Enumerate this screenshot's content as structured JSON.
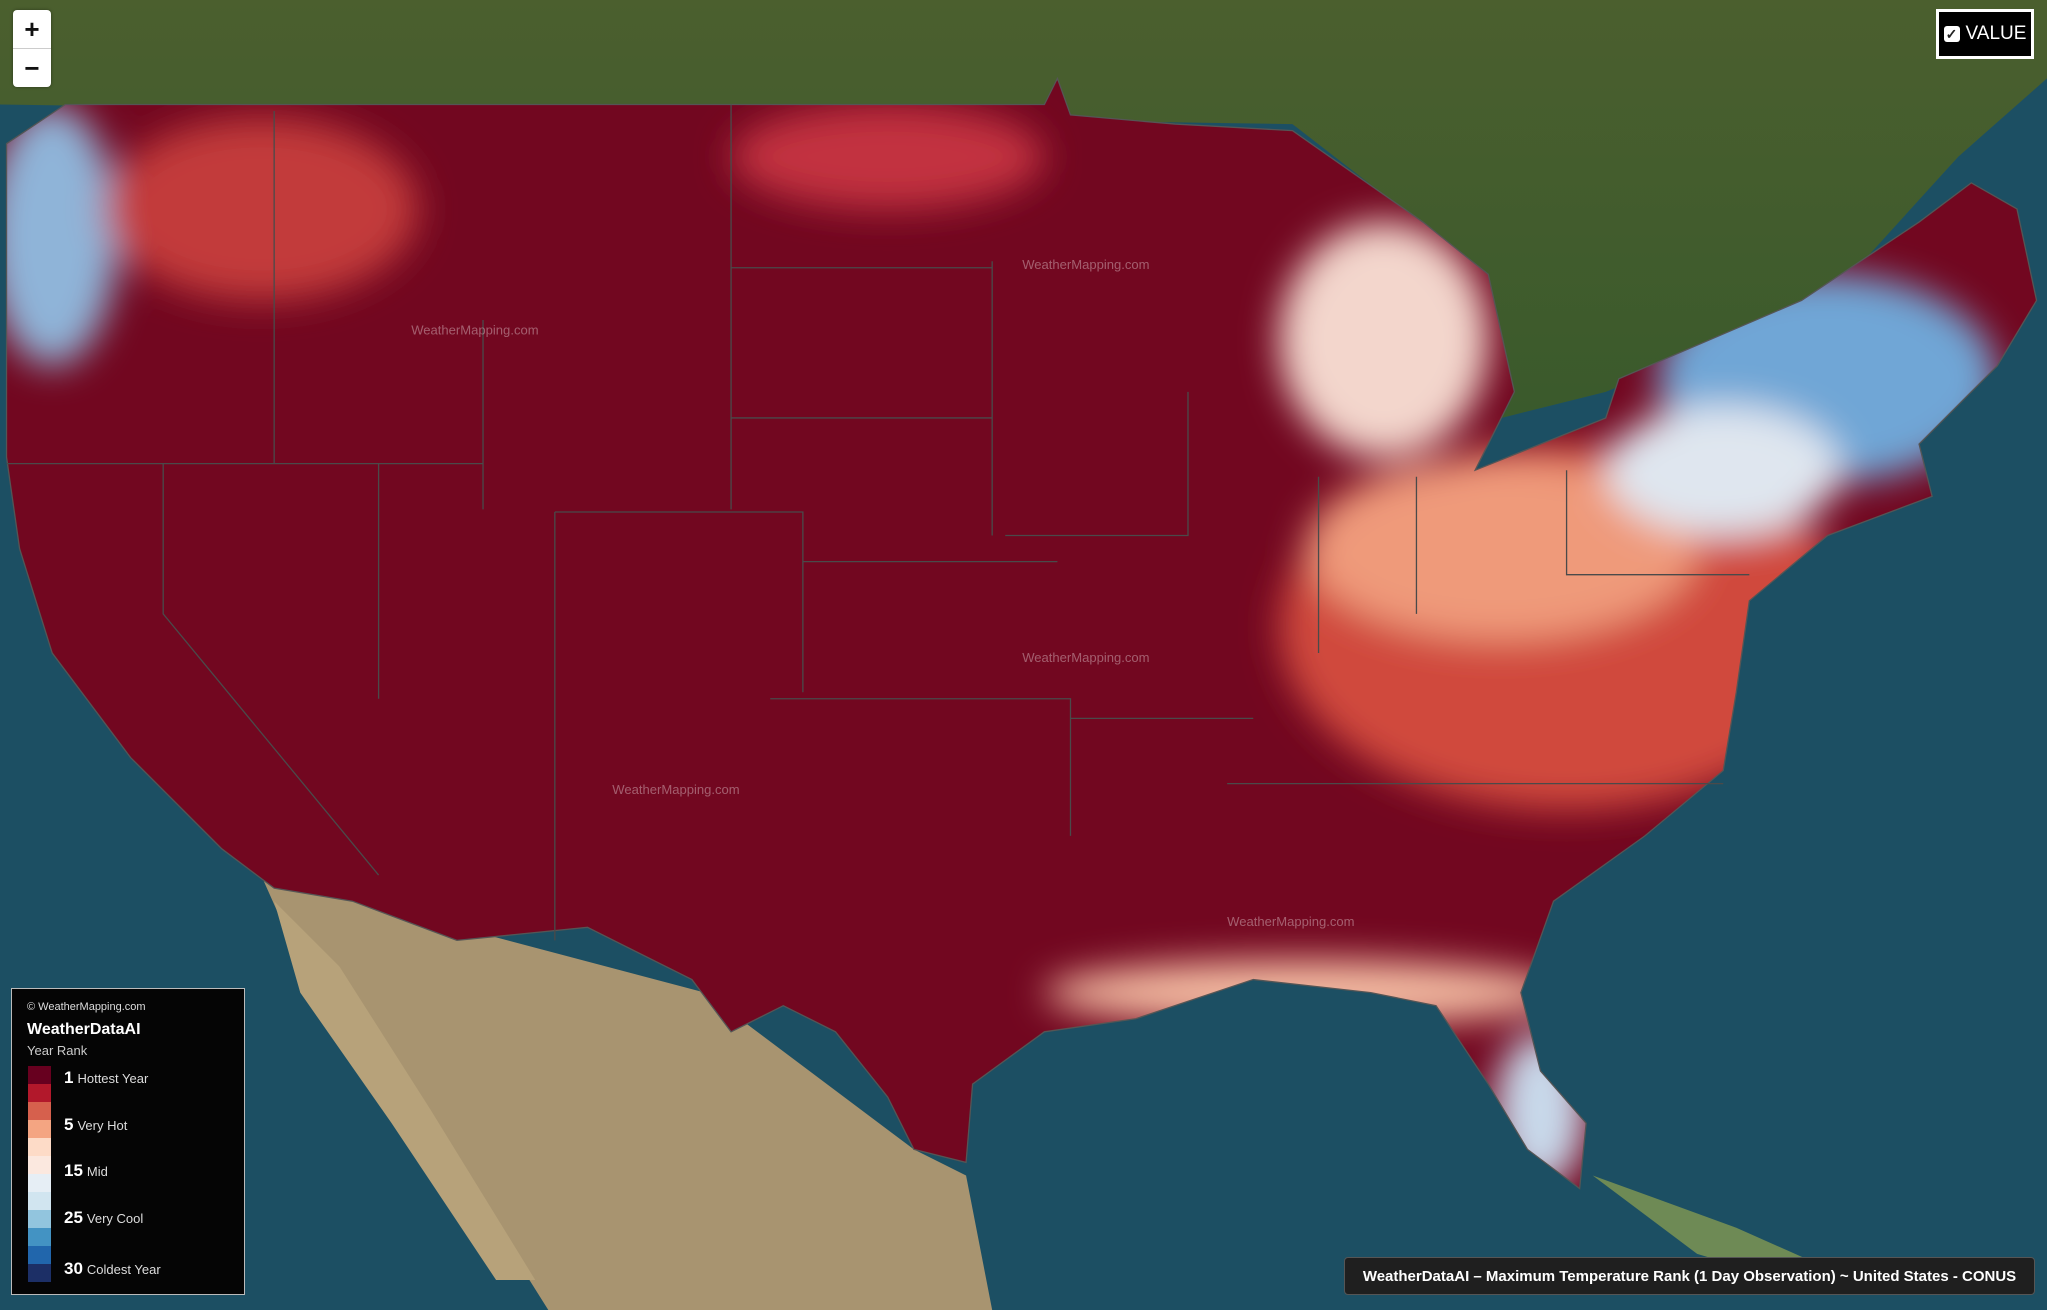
{
  "map": {
    "watermark": "WeatherMapping.com",
    "colors": {
      "rank1": "#67001f",
      "hot": "#b2182b",
      "mid": "#f7f7f7",
      "cool": "#4393c3",
      "coldest": "#053061"
    }
  },
  "controls": {
    "zoom_in": "+",
    "zoom_out": "−",
    "value_toggle": {
      "label": "VALUE",
      "checked": true
    }
  },
  "legend": {
    "copyright": "© WeatherMapping.com",
    "title": "WeatherDataAI",
    "subtitle": "Year Rank",
    "ramp": [
      "#67001f",
      "#b2182b",
      "#d6604d",
      "#f4a582",
      "#fddbc7",
      "#fbe8df",
      "#e6eef5",
      "#d1e5f0",
      "#92c5de",
      "#4393c3",
      "#2166ac",
      "#1c2f66"
    ],
    "entries": [
      {
        "rank": "1",
        "label": "Hottest Year"
      },
      {
        "rank": "5",
        "label": "Very Hot"
      },
      {
        "rank": "15",
        "label": "Mid"
      },
      {
        "rank": "25",
        "label": "Very Cool"
      },
      {
        "rank": "30",
        "label": "Coldest Year"
      }
    ]
  },
  "caption": "WeatherDataAI – Maximum Temperature Rank (1 Day Observation) ~ United States - CONUS"
}
